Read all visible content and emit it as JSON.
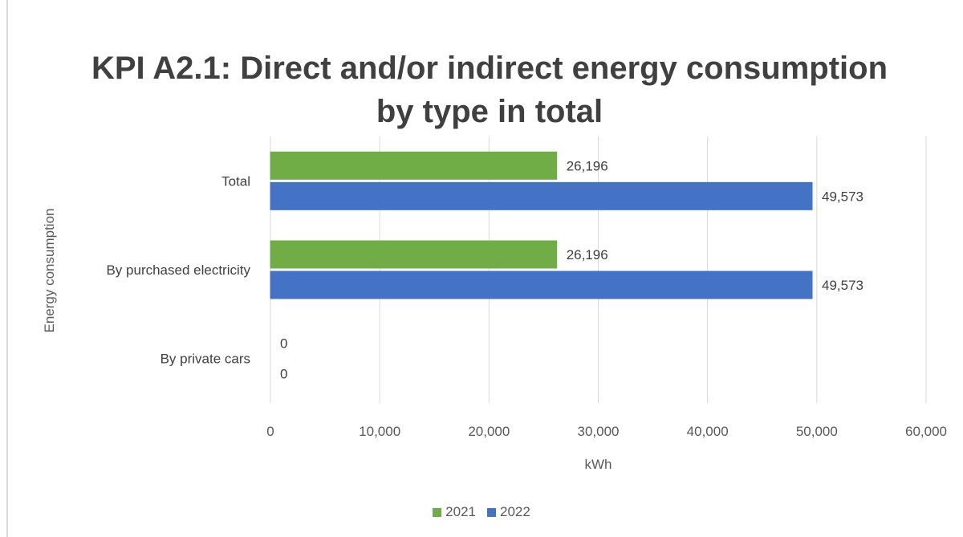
{
  "chart_data": {
    "type": "bar",
    "orientation": "horizontal",
    "title_lines": [
      "KPI A2.1: Direct and/or indirect energy consumption",
      "by type in total"
    ],
    "xlabel": "kWh",
    "ylabel": "Energy consumption",
    "categories": [
      "Total",
      "By purchased electricity",
      "By private cars"
    ],
    "series": [
      {
        "name": "2021",
        "color": "#70ad47",
        "values": [
          26196,
          26196,
          0
        ],
        "labels": [
          "26,196",
          "26,196",
          "0"
        ]
      },
      {
        "name": "2022",
        "color": "#4472c4",
        "values": [
          49573,
          49573,
          0
        ],
        "labels": [
          "49,573",
          "49,573",
          "0"
        ]
      }
    ],
    "xlim": [
      0,
      60000
    ],
    "xticks": [
      0,
      10000,
      20000,
      30000,
      40000,
      50000,
      60000
    ],
    "xtick_labels": [
      "0",
      "10,000",
      "20,000",
      "30,000",
      "40,000",
      "50,000",
      "60,000"
    ],
    "grid": "vertical",
    "legend_position": "bottom"
  }
}
